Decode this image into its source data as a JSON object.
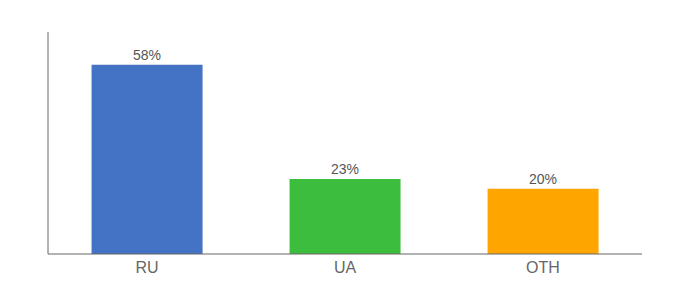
{
  "chart_data": {
    "type": "bar",
    "categories": [
      "RU",
      "UA",
      "OTH"
    ],
    "values": [
      58,
      23,
      20
    ],
    "value_labels": [
      "58%",
      "23%",
      "20%"
    ],
    "colors": [
      "#4472C4",
      "#3DBD3D",
      "#FFA500"
    ],
    "ylim": [
      0,
      68
    ],
    "data_labels": true,
    "grid": false,
    "tick_labels": "x"
  }
}
